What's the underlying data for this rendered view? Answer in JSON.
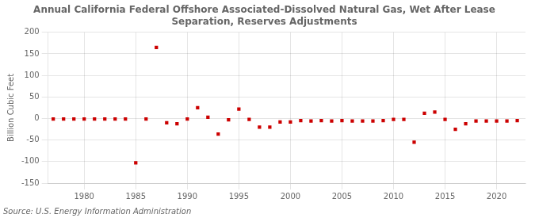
{
  "chart_data": {
    "type": "scatter",
    "title": "Annual California Federal Offshore Associated-Dissolved Natural Gas, Wet After Lease\nSeparation, Reserves Adjustments",
    "ylabel": "Billion Cubic Feet",
    "source": "Source: U.S. Energy Information Administration",
    "x": [
      1977,
      1978,
      1979,
      1980,
      1981,
      1982,
      1983,
      1984,
      1985,
      1986,
      1987,
      1988,
      1989,
      1990,
      1991,
      1992,
      1993,
      1994,
      1995,
      1996,
      1997,
      1998,
      1999,
      2000,
      2001,
      2002,
      2003,
      2004,
      2005,
      2006,
      2007,
      2008,
      2009,
      2010,
      2011,
      2012,
      2013,
      2014,
      2015,
      2016,
      2017,
      2018,
      2019,
      2020,
      2021,
      2022
    ],
    "values": [
      -1,
      -1,
      -1,
      -1,
      -1,
      -1,
      -1,
      -1,
      -103,
      -1,
      165,
      -10,
      -12,
      -1,
      25,
      3,
      -36,
      -3,
      22,
      -2,
      -20,
      -20,
      -8,
      -8,
      -5,
      -6,
      -5,
      -6,
      -5,
      -6,
      -6,
      -6,
      -5,
      -2,
      -2,
      -55,
      12,
      15,
      -2,
      -25,
      -12,
      -6,
      -6,
      -6,
      -6,
      -5
    ],
    "color": "#cc0000",
    "marker": "square",
    "xlim": [
      1976.5,
      2022.8
    ],
    "xticks": [
      1980,
      1985,
      1990,
      1995,
      2000,
      2005,
      2010,
      2015,
      2020
    ],
    "ylim": [
      -150,
      200
    ],
    "yticks": [
      -150,
      -100,
      -50,
      0,
      50,
      100,
      150,
      200
    ],
    "grid": true
  }
}
